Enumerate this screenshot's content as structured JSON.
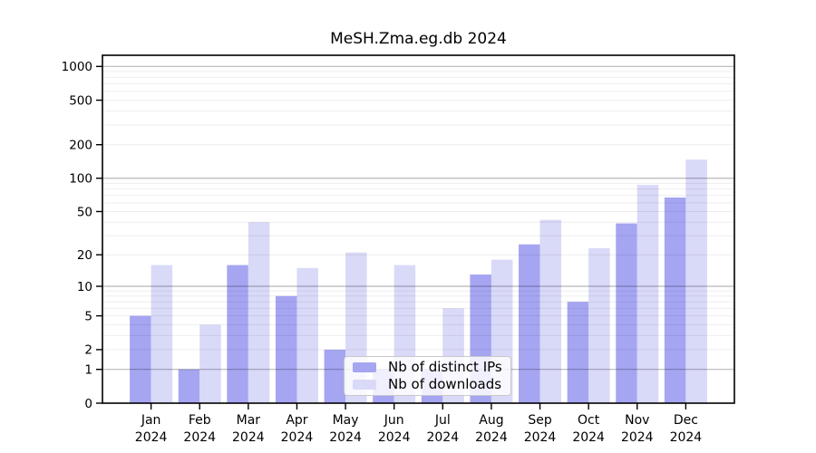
{
  "chart_data": {
    "type": "bar",
    "title": "MeSH.Zma.eg.db 2024",
    "categories": [
      "Jan",
      "Feb",
      "Mar",
      "Apr",
      "May",
      "Jun",
      "Jul",
      "Aug",
      "Sep",
      "Oct",
      "Nov",
      "Dec"
    ],
    "year_label": "2024",
    "series": [
      {
        "name": "Nb of distinct IPs",
        "color": "#a5a5f2",
        "values": [
          5,
          1,
          16,
          8,
          2,
          1,
          1,
          13,
          25,
          7,
          39,
          67
        ]
      },
      {
        "name": "Nb of downloads",
        "color": "#d9d9f8",
        "values": [
          16,
          4,
          40,
          15,
          21,
          16,
          6,
          18,
          42,
          23,
          87,
          147
        ]
      }
    ],
    "y_ticks": [
      0,
      1,
      2,
      5,
      10,
      20,
      50,
      100,
      200,
      500,
      1000
    ],
    "y_scale": "log10(value+1)",
    "ylim": [
      0,
      1258
    ],
    "grid": true,
    "legend_position": "inside-bottom-center"
  }
}
